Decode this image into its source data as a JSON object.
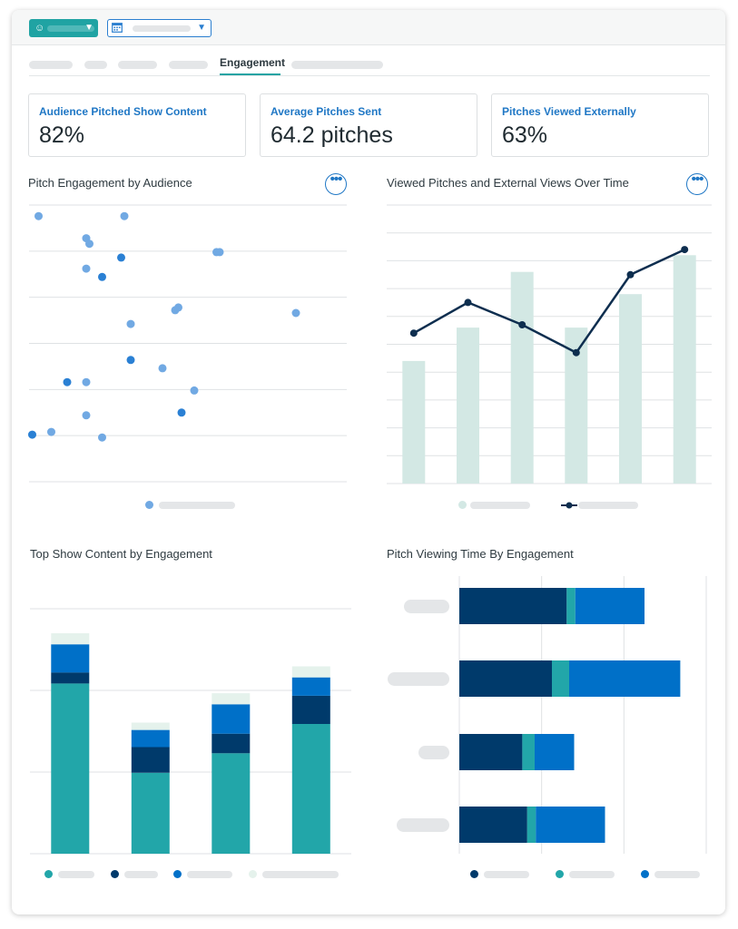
{
  "tabs": {
    "active_label": "Engagement"
  },
  "kpis": [
    {
      "label": "Audience Pitched Show Content",
      "value": "82%"
    },
    {
      "label": "Average Pitches Sent",
      "value": "64.2 pitches"
    },
    {
      "label": "Pitches Viewed Externally",
      "value": "63%"
    }
  ],
  "icons": {
    "audience": "people-icon",
    "calendar": "calendar-icon",
    "chevron": "chevron-down-icon",
    "more": "more-horizontal-icon"
  },
  "colors": {
    "teal": "#22a6a9",
    "navy": "#003a6b",
    "blue": "#0070c8",
    "light_dot": "#71a9e3",
    "mid_dot": "#2a80d4",
    "pale_teal": "#d3e8e4",
    "pale_mint": "#e5f2ec",
    "line": "#0e2e4f"
  },
  "chart_data": [
    {
      "type": "scatter",
      "title": "Pitch Engagement by Audience",
      "grid": true,
      "xlim": [
        0,
        100
      ],
      "ylim": [
        0,
        100
      ],
      "series": [
        {
          "kind": "light",
          "points": [
            [
              3,
              96
            ],
            [
              18,
              88
            ],
            [
              19,
              86
            ],
            [
              30,
              96
            ],
            [
              59,
              83
            ],
            [
              60,
              83
            ],
            [
              18,
              77
            ],
            [
              46,
              62
            ],
            [
              47,
              63
            ],
            [
              32,
              57
            ],
            [
              84,
              61
            ],
            [
              42,
              41
            ],
            [
              18,
              36
            ],
            [
              52,
              33
            ],
            [
              18,
              24
            ],
            [
              7,
              18
            ],
            [
              23,
              16
            ]
          ]
        },
        {
          "kind": "dark",
          "points": [
            [
              29,
              81
            ],
            [
              23,
              74
            ],
            [
              32,
              44
            ],
            [
              12,
              36
            ],
            [
              48,
              25
            ],
            [
              1,
              17
            ]
          ]
        }
      ]
    },
    {
      "type": "bar+line",
      "title": "Viewed Pitches and External Views Over Time",
      "grid": true,
      "ylim": [
        0,
        100
      ],
      "bars": [
        44,
        56,
        76,
        56,
        68,
        82
      ],
      "line": [
        54,
        65,
        57,
        47,
        75,
        84
      ]
    },
    {
      "type": "stacked-bar",
      "title": "Top Show Content by Engagement",
      "grid": true,
      "ylim": [
        0,
        100
      ],
      "stacks": [
        [
          69.5,
          4.5,
          11.5,
          4.5
        ],
        [
          33,
          10.5,
          7,
          3
        ],
        [
          41,
          8,
          12,
          4.5
        ],
        [
          53,
          11.5,
          7.5,
          4.5
        ]
      ]
    },
    {
      "type": "horizontal-stacked-bar",
      "title": "Pitch Viewing Time By Engagement",
      "grid": true,
      "xlim": [
        0,
        100
      ],
      "bars": [
        [
          43.5,
          3.5,
          28
        ],
        [
          37.5,
          7,
          45
        ],
        [
          25.5,
          5,
          16
        ],
        [
          27.5,
          3.5,
          28
        ]
      ]
    }
  ]
}
